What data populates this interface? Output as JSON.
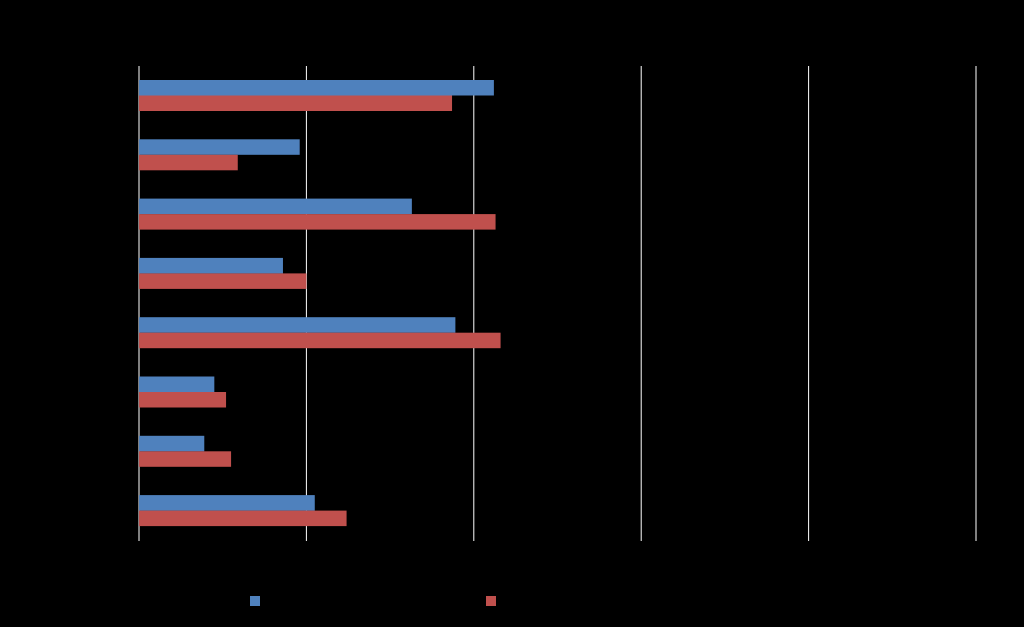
{
  "chart_data": {
    "type": "bar",
    "orientation": "horizontal",
    "categories": [
      "",
      "",
      "",
      "",
      "",
      "",
      "",
      ""
    ],
    "series": [
      {
        "values": [
          212,
          96,
          163,
          86,
          189,
          45,
          39,
          105
        ],
        "color": "#4F81BD"
      },
      {
        "values": [
          187,
          59,
          213,
          100,
          216,
          52,
          55,
          124
        ],
        "color": "#C0504D"
      }
    ],
    "xlim": [
      0,
      500
    ],
    "x_gridlines": [
      0,
      100,
      200,
      300,
      400,
      500
    ],
    "grid": true,
    "legend_position": "bottom",
    "background": "#000000",
    "gridline_color": "#FFFFFF",
    "title": "",
    "xlabel": "",
    "ylabel": ""
  }
}
